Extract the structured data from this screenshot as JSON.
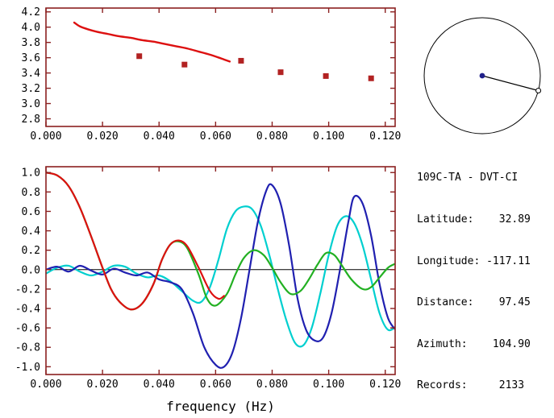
{
  "colors": {
    "frame": "#8b2020",
    "tick_text": "#000000",
    "red": "#dd1010",
    "marker_red": "#b22222",
    "green": "#22b022",
    "cyan": "#00cfcf",
    "blue": "#2020b0",
    "black": "#000000",
    "center_dot": "#20208a"
  },
  "station": {
    "title": "109C-TA - DVT-CI",
    "lines": [
      "Latitude:    32.89",
      "Longitude: -117.11",
      "Distance:    97.45",
      "Azimuth:    104.90",
      "Records:     2133"
    ]
  },
  "azimuth_diagram": {
    "azimuth_deg": 104.9,
    "center_dot_color": "#20208a",
    "line_color": "#000000"
  },
  "chart_data": [
    {
      "type": "line",
      "name": "dispersion-velocity-chart",
      "title": "",
      "xlabel": "",
      "ylabel": "",
      "xlim": [
        0,
        0.1235
      ],
      "ylim": [
        2.7,
        4.25
      ],
      "xticks": [
        0,
        0.02,
        0.04,
        0.06,
        0.08,
        0.1,
        0.12
      ],
      "xtick_labels": [
        "0.000",
        "0.020",
        "0.040",
        "0.060",
        "0.080",
        "0.100",
        "0.120"
      ],
      "yticks": [
        2.8,
        3.0,
        3.2,
        3.4,
        3.6,
        3.8,
        4.0,
        4.2
      ],
      "ytick_labels": [
        "2.8",
        "3.0",
        "3.2",
        "3.4",
        "3.6",
        "3.8",
        "4.0",
        "4.2"
      ],
      "series": [
        {
          "name": "predicted-dispersion-curve",
          "type": "line",
          "color": "#dd1010",
          "width": 2.4,
          "smooth": true,
          "x": [
            0.01,
            0.012,
            0.015,
            0.018,
            0.022,
            0.026,
            0.03,
            0.034,
            0.038,
            0.042,
            0.046,
            0.05,
            0.054,
            0.058,
            0.062,
            0.065
          ],
          "y": [
            4.06,
            4.01,
            3.97,
            3.94,
            3.91,
            3.88,
            3.86,
            3.83,
            3.81,
            3.78,
            3.75,
            3.72,
            3.68,
            3.64,
            3.59,
            3.55
          ]
        },
        {
          "name": "measured-velocity-picks",
          "type": "square",
          "color": "#b22222",
          "size": 7,
          "x": [
            0.033,
            0.049,
            0.069,
            0.083,
            0.099,
            0.115
          ],
          "y": [
            3.62,
            3.51,
            3.56,
            3.41,
            3.36,
            3.33
          ]
        }
      ]
    },
    {
      "type": "line",
      "name": "correlation-waveform-chart",
      "title": "",
      "xlabel": "frequency (Hz)",
      "ylabel": "",
      "xlim": [
        0,
        0.1235
      ],
      "ylim": [
        -1.08,
        1.06
      ],
      "xticks": [
        0,
        0.02,
        0.04,
        0.06,
        0.08,
        0.1,
        0.12
      ],
      "xtick_labels": [
        "0.000",
        "0.020",
        "0.040",
        "0.060",
        "0.080",
        "0.100",
        "0.120"
      ],
      "yticks": [
        -1.0,
        -0.8,
        -0.6,
        -0.4,
        -0.2,
        0.0,
        0.2,
        0.4,
        0.6,
        0.8,
        1.0
      ],
      "ytick_labels": [
        "-1.0",
        "-0.8",
        "-0.6",
        "-0.4",
        "-0.2",
        "0.0",
        "0.2",
        "0.4",
        "0.6",
        "0.8",
        "1.0"
      ],
      "series": [
        {
          "name": "zero-line",
          "type": "line",
          "color": "#000000",
          "width": 1,
          "smooth": false,
          "x": [
            0,
            0.1235
          ],
          "y": [
            0,
            0
          ]
        },
        {
          "name": "cyan-trace",
          "type": "line",
          "color": "#00cfcf",
          "width": 2.2,
          "smooth": true,
          "x": [
            0.0,
            0.004,
            0.008,
            0.012,
            0.016,
            0.02,
            0.024,
            0.028,
            0.032,
            0.036,
            0.04,
            0.044,
            0.048,
            0.052,
            0.055,
            0.058,
            0.061,
            0.064,
            0.067,
            0.07,
            0.073,
            0.076,
            0.079,
            0.082,
            0.085,
            0.088,
            0.091,
            0.094,
            0.097,
            0.1,
            0.103,
            0.106,
            0.109,
            0.112,
            0.115,
            0.118,
            0.121,
            0.124
          ],
          "y": [
            -0.04,
            0.02,
            0.04,
            -0.02,
            -0.06,
            -0.02,
            0.04,
            0.03,
            -0.04,
            -0.08,
            -0.06,
            -0.12,
            -0.22,
            -0.32,
            -0.33,
            -0.18,
            0.1,
            0.42,
            0.6,
            0.65,
            0.62,
            0.45,
            0.15,
            -0.2,
            -0.52,
            -0.75,
            -0.78,
            -0.6,
            -0.25,
            0.15,
            0.45,
            0.55,
            0.48,
            0.25,
            -0.1,
            -0.45,
            -0.62,
            -0.58
          ]
        },
        {
          "name": "blue-trace",
          "type": "line",
          "color": "#2020b0",
          "width": 2.2,
          "smooth": true,
          "x": [
            0.0,
            0.004,
            0.008,
            0.012,
            0.016,
            0.02,
            0.024,
            0.028,
            0.032,
            0.036,
            0.04,
            0.044,
            0.048,
            0.052,
            0.056,
            0.06,
            0.063,
            0.066,
            0.069,
            0.072,
            0.075,
            0.078,
            0.08,
            0.083,
            0.086,
            0.089,
            0.092,
            0.095,
            0.098,
            0.101,
            0.104,
            0.107,
            0.109,
            0.112,
            0.115,
            0.118,
            0.121,
            0.124
          ],
          "y": [
            0.0,
            0.03,
            -0.02,
            0.04,
            -0.01,
            -0.05,
            0.01,
            -0.03,
            -0.06,
            -0.03,
            -0.1,
            -0.13,
            -0.2,
            -0.45,
            -0.8,
            -0.98,
            -1.0,
            -0.85,
            -0.5,
            0.0,
            0.5,
            0.82,
            0.87,
            0.68,
            0.25,
            -0.3,
            -0.62,
            -0.73,
            -0.7,
            -0.45,
            0.0,
            0.5,
            0.75,
            0.68,
            0.35,
            -0.15,
            -0.5,
            -0.63
          ]
        },
        {
          "name": "green-trace",
          "type": "line",
          "color": "#22b022",
          "width": 2.2,
          "smooth": true,
          "x": [
            0.0,
            0.004,
            0.008,
            0.012,
            0.016,
            0.02,
            0.023,
            0.026,
            0.03,
            0.034,
            0.038,
            0.041,
            0.044,
            0.047,
            0.05,
            0.054,
            0.057,
            0.06,
            0.064,
            0.067,
            0.07,
            0.0735,
            0.077,
            0.08,
            0.083,
            0.0865,
            0.09,
            0.093,
            0.096,
            0.099,
            0.102,
            0.1045,
            0.108,
            0.112,
            0.115,
            0.118,
            0.121,
            0.1235
          ],
          "y": [
            1.0,
            0.97,
            0.86,
            0.64,
            0.34,
            0.02,
            -0.2,
            -0.33,
            -0.41,
            -0.35,
            -0.15,
            0.1,
            0.26,
            0.29,
            0.22,
            -0.05,
            -0.3,
            -0.37,
            -0.25,
            -0.05,
            0.12,
            0.2,
            0.15,
            0.02,
            -0.13,
            -0.25,
            -0.22,
            -0.1,
            0.05,
            0.17,
            0.15,
            0.05,
            -0.1,
            -0.2,
            -0.18,
            -0.08,
            0.02,
            0.06
          ]
        },
        {
          "name": "red-trace",
          "type": "line",
          "color": "#dd1010",
          "width": 2.2,
          "smooth": true,
          "x": [
            0.0,
            0.004,
            0.008,
            0.012,
            0.016,
            0.02,
            0.023,
            0.026,
            0.03,
            0.034,
            0.038,
            0.041,
            0.044,
            0.047,
            0.05,
            0.054,
            0.058,
            0.061,
            0.063
          ],
          "y": [
            1.0,
            0.97,
            0.86,
            0.64,
            0.34,
            0.02,
            -0.2,
            -0.33,
            -0.41,
            -0.35,
            -0.15,
            0.1,
            0.26,
            0.3,
            0.24,
            0.02,
            -0.22,
            -0.3,
            -0.27
          ]
        }
      ]
    }
  ]
}
